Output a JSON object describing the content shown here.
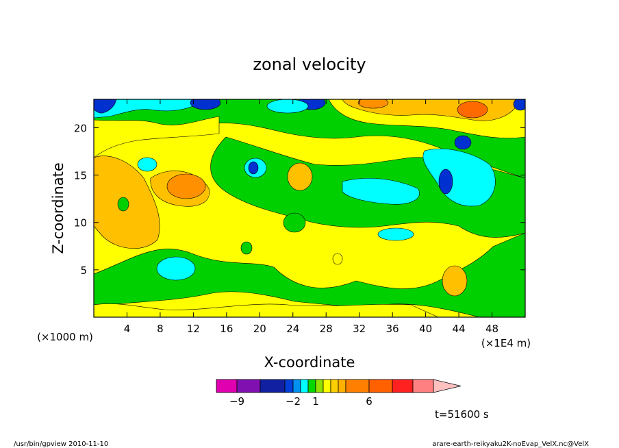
{
  "chart_data": {
    "type": "heatmap",
    "title": "zonal velocity",
    "xlabel": "X-coordinate",
    "ylabel": "Z-coordinate",
    "x_unit": "(×1E4 m)",
    "y_unit": "(×1000 m)",
    "xlim": [
      0,
      52
    ],
    "ylim": [
      0,
      23
    ],
    "x_ticks": [
      "4",
      "8",
      "12",
      "16",
      "20",
      "24",
      "28",
      "32",
      "36",
      "40",
      "44",
      "48"
    ],
    "x_tick_values": [
      4,
      8,
      12,
      16,
      20,
      24,
      28,
      32,
      36,
      40,
      44,
      48
    ],
    "y_ticks": [
      "5",
      "10",
      "15",
      "20"
    ],
    "y_tick_values": [
      5,
      10,
      15,
      20
    ],
    "time_label": "t=51600 s",
    "colorbar": {
      "labels": [
        {
          "text": "−9",
          "value": -9
        },
        {
          "text": "−2",
          "value": -2
        },
        {
          "text": "1",
          "value": 1
        },
        {
          "text": "6",
          "value": 6
        }
      ],
      "bins": [
        {
          "color": "#e000b0",
          "value": -12
        },
        {
          "color": "#8010b0",
          "value": -9
        },
        {
          "color": "#1020a0",
          "value": -6
        },
        {
          "color": "#0040d8",
          "value": -3
        },
        {
          "color": "#0090f0",
          "value": -2
        },
        {
          "color": "#00ffff",
          "value": -1
        },
        {
          "color": "#00d800",
          "value": 0
        },
        {
          "color": "#90e000",
          "value": 1
        },
        {
          "color": "#ffff00",
          "value": 2
        },
        {
          "color": "#ffd000",
          "value": 3
        },
        {
          "color": "#ffb000",
          "value": 4
        },
        {
          "color": "#ff8000",
          "value": 5
        },
        {
          "color": "#ff6000",
          "value": 6
        },
        {
          "color": "#ff2020",
          "value": 9
        },
        {
          "color": "#ff8080",
          "value": 12
        }
      ],
      "over_color": "#ffc0c0"
    },
    "regions_description_colors": {
      "deep_blue": "#0030d0",
      "cyan": "#00ffff",
      "green": "#00d000",
      "yellow": "#ffff00",
      "light_orange": "#ffc000",
      "orange": "#ff9000",
      "dark_orange": "#ff6a00"
    }
  },
  "footer": {
    "left": "/usr/bin/gpview  2010-11-10",
    "right": "arare-earth-reikyaku2K-noEvap_VelX.nc@VelX"
  }
}
